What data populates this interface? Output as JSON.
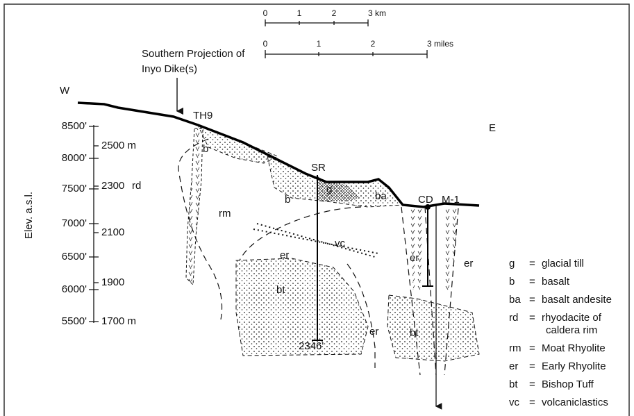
{
  "scales": {
    "km": [
      "0",
      "1",
      "2",
      "3 km"
    ],
    "miles": [
      "0",
      "1",
      "2",
      "3 miles"
    ]
  },
  "compass": {
    "west": "W",
    "east": "E"
  },
  "annotation": [
    "Southern Projection of",
    "Inyo Dike(s)"
  ],
  "wells": {
    "th9": "TH9",
    "sr": "SR",
    "cd": "CD",
    "m1": "M-1",
    "sr_depth": "2346'"
  },
  "axis": {
    "title": "Elev. a.s.l.",
    "feet": [
      "8500'",
      "8000'",
      "7500'",
      "7000'",
      "6500'",
      "6000'",
      "5500'"
    ],
    "meters": [
      "2500 m",
      "2300",
      "2100",
      "1900",
      "1700 m"
    ]
  },
  "units": [
    "b",
    "b",
    "g",
    "ba",
    "rd",
    "rm",
    "vc",
    "er",
    "er",
    "er",
    "er",
    "bt",
    "bt"
  ],
  "legend": {
    "equals": "=",
    "items": [
      {
        "code": "g",
        "lines": [
          "glacial till"
        ]
      },
      {
        "code": "b",
        "lines": [
          "basalt"
        ]
      },
      {
        "code": "ba",
        "lines": [
          "basalt andesite"
        ]
      },
      {
        "code": "rd",
        "lines": [
          "rhyodacite of",
          "caldera rim"
        ]
      },
      {
        "code": "rm",
        "lines": [
          "Moat Rhyolite"
        ]
      },
      {
        "code": "er",
        "lines": [
          "Early Rhyolite"
        ]
      },
      {
        "code": "bt",
        "lines": [
          "Bishop Tuff"
        ]
      },
      {
        "code": "vc",
        "lines": [
          "volcaniclastics"
        ]
      }
    ]
  }
}
